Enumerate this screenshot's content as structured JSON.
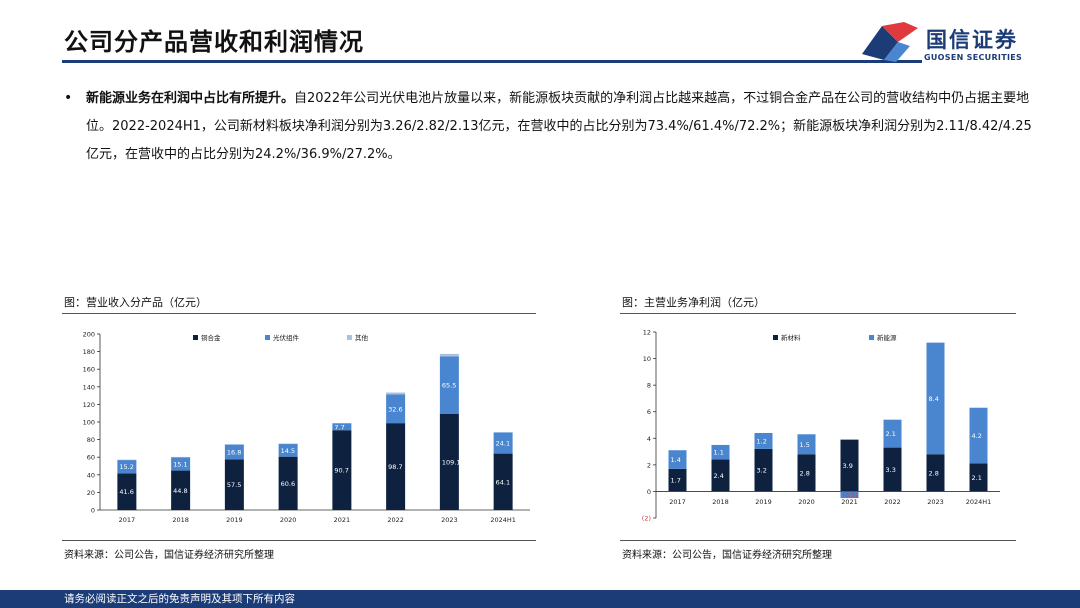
{
  "header": {
    "title": "公司分产品营收和利润情况",
    "logo_cn": "国信证券",
    "logo_en": "GUOSEN SECURITIES"
  },
  "paragraph": {
    "bullet": "•",
    "bold": "新能源业务在利润中占比有所提升。",
    "text": "自2022年公司光伏电池片放量以来，新能源板块贡献的净利润占比越来越高，不过铜合金产品在公司的营收结构中仍占据主要地位。2022-2024H1，公司新材料板块净利润分别为3.26/2.82/2.13亿元，在营收中的占比分别为73.4%/61.4%/72.2%；新能源板块净利润分别为2.11/8.42/4.25亿元，在营收中的占比分别为24.2%/36.9%/27.2%。"
  },
  "left_chart": {
    "caption": "图：营业收入分产品（亿元）",
    "source": "资料来源：公司公告，国信证券经济研究所整理"
  },
  "right_chart": {
    "caption": "图：主营业务净利润（亿元）",
    "source": "资料来源：公司公告，国信证券经济研究所整理"
  },
  "footer": {
    "disclaimer": "请务必阅读正文之后的免责声明及其项下所有内容"
  },
  "colors": {
    "navy": "#1c3c78",
    "dark_bar": "#0e2240",
    "mid_bar": "#4a86d0",
    "light_bar": "#a9c2e2",
    "logo_red": "#e03a3e"
  },
  "chart_data": [
    {
      "type": "bar",
      "stacked": true,
      "categories": [
        "2017",
        "2018",
        "2019",
        "2020",
        "2021",
        "2022",
        "2023",
        "2024H1"
      ],
      "ylim": [
        0,
        200
      ],
      "yticks": [
        0,
        20,
        40,
        60,
        80,
        100,
        120,
        140,
        160,
        180,
        200
      ],
      "legend_position": "top",
      "series": [
        {
          "name": "铜合金",
          "color": "#0e2240",
          "values": [
            41.6,
            44.8,
            57.5,
            60.6,
            90.7,
            98.7,
            109.1,
            64.1
          ],
          "labels": [
            "41.6",
            "44.8",
            "57.5",
            "60.6",
            "90.7",
            "98.7",
            "109.1",
            "64.1"
          ]
        },
        {
          "name": "光伏组件",
          "color": "#4a86d0",
          "values": [
            15.2,
            15.1,
            16.8,
            14.5,
            7.7,
            32.6,
            65.5,
            24.1
          ],
          "labels": [
            "15.2",
            "15.1",
            "16.8",
            "14.5",
            "7.7",
            "32.6",
            "65.5",
            "24.1"
          ]
        },
        {
          "name": "其他",
          "color": "#a9c2e2",
          "values": [
            0.4,
            0.4,
            0.5,
            0.4,
            0.5,
            2.2,
            2.8,
            0.2
          ],
          "labels": []
        }
      ]
    },
    {
      "type": "bar",
      "stacked": true,
      "categories": [
        "2017",
        "2018",
        "2019",
        "2020",
        "2021",
        "2022",
        "2023",
        "2024H1"
      ],
      "ylim": [
        -2,
        12
      ],
      "yticks": [
        -2,
        0,
        2,
        4,
        6,
        8,
        10,
        12
      ],
      "ytick_labels": [
        "(2)",
        "0",
        "2",
        "4",
        "6",
        "8",
        "10",
        "12"
      ],
      "legend_position": "top",
      "series": [
        {
          "name": "新材料",
          "color": "#0e2240",
          "values": [
            1.7,
            2.4,
            3.2,
            2.8,
            3.9,
            3.3,
            2.8,
            2.1
          ],
          "labels": [
            "1.7",
            "2.4",
            "3.2",
            "2.8",
            "3.9",
            "3.3",
            "2.8",
            "2.1"
          ]
        },
        {
          "name": "新能源",
          "color": "#4a86d0",
          "values": [
            1.4,
            1.1,
            1.2,
            1.5,
            -0.5,
            2.1,
            8.4,
            4.2
          ],
          "labels": [
            "1.4",
            "1.1",
            "1.2",
            "1.5",
            "(0.5)",
            "2.1",
            "8.4",
            "4.2"
          ]
        }
      ]
    }
  ]
}
